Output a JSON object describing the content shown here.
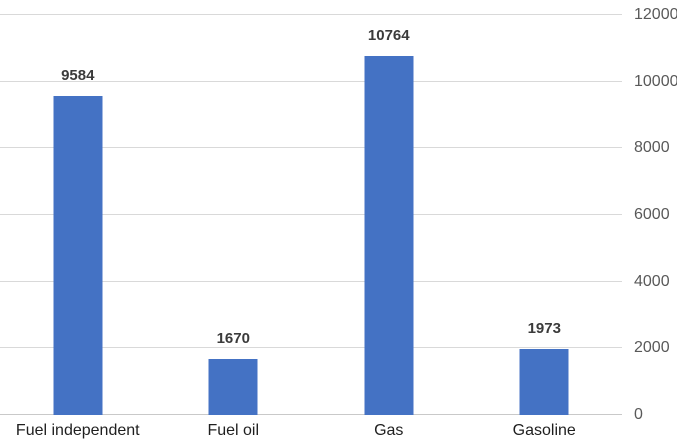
{
  "chart_data": {
    "type": "bar",
    "categories": [
      "Fuel independent",
      "Fuel oil",
      "Gas",
      "Gasoline"
    ],
    "values": [
      9584,
      1670,
      10764,
      1973
    ],
    "data_labels": [
      "9584",
      "1670",
      "10764",
      "1973"
    ],
    "title": "",
    "xlabel": "",
    "ylabel": "",
    "ylim": [
      0,
      12000
    ],
    "yticks": [
      0,
      2000,
      4000,
      6000,
      8000,
      10000,
      12000
    ],
    "y_axis_side": "right",
    "grid": true,
    "legend": "none",
    "show_data_labels": true,
    "colors": {
      "bar": "#4472C4",
      "gridline": "#D9D9D9",
      "axis_line": "#C9C9C9",
      "value_label": "#3B3B3B",
      "tick_label": "#595959",
      "category_label": "#1F1F1F",
      "background": "#FFFFFF"
    }
  }
}
